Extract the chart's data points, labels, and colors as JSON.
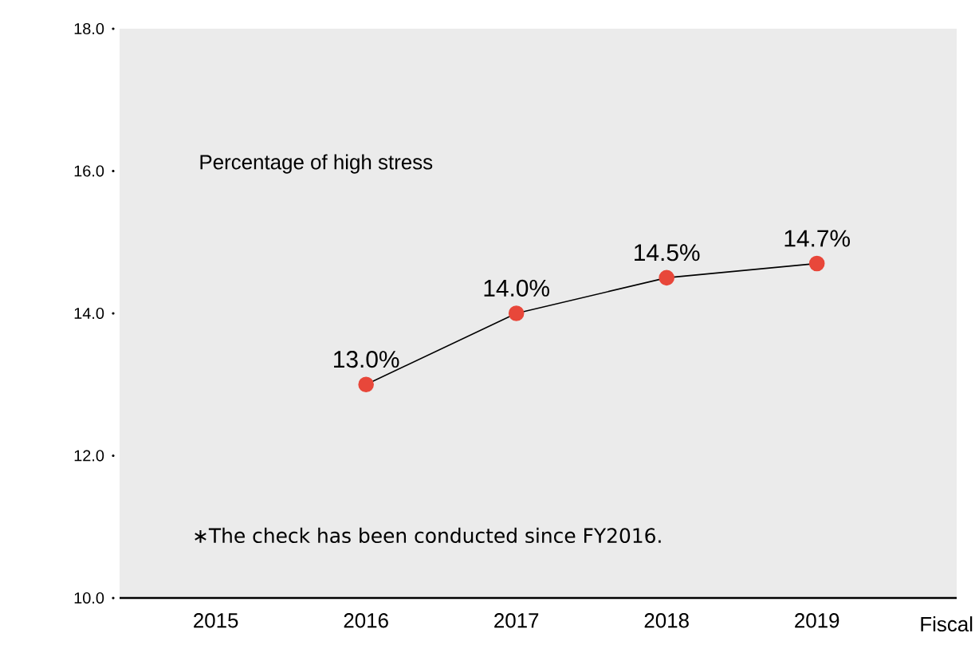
{
  "chart_data": {
    "type": "line",
    "categories": [
      "2015",
      "2016",
      "2017",
      "2018",
      "2019"
    ],
    "series": [
      {
        "name": "Percentage of high stress",
        "color": "#e8473a",
        "values": [
          null,
          13.0,
          14.0,
          14.5,
          14.7
        ],
        "value_labels": [
          null,
          "13.0%",
          "14.0%",
          "14.5%",
          "14.7%"
        ]
      }
    ],
    "xlabel": "Fiscal",
    "ylim": [
      10,
      18
    ],
    "yticks": [
      {
        "value": 10,
        "label": "10.0"
      },
      {
        "value": 12,
        "label": "12.0"
      },
      {
        "value": 14,
        "label": "14.0"
      },
      {
        "value": 16,
        "label": "16.0"
      },
      {
        "value": 18,
        "label": "18.0"
      }
    ],
    "annotations": [
      "∗The check has been conducted since FY2016."
    ],
    "marker": "circle",
    "line_style": "solid",
    "grid": false,
    "legend": false
  }
}
